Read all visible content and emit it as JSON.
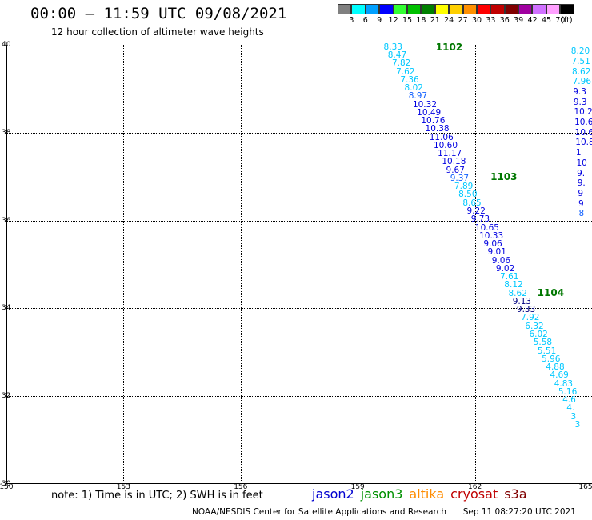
{
  "header": {
    "title": "00:00 – 11:59 UTC 09/08/2021",
    "subtitle": "12 hour collection of altimeter wave heights"
  },
  "legend": {
    "unit_label": "(ft)",
    "bins": [
      {
        "label": "3",
        "color": "#808080"
      },
      {
        "label": "6",
        "color": "#00ffff"
      },
      {
        "label": "9",
        "color": "#00a0ff"
      },
      {
        "label": "12",
        "color": "#0000ff"
      },
      {
        "label": "15",
        "color": "#33ff33"
      },
      {
        "label": "18",
        "color": "#00c000"
      },
      {
        "label": "21",
        "color": "#008000"
      },
      {
        "label": "24",
        "color": "#ffff00"
      },
      {
        "label": "27",
        "color": "#ffd000"
      },
      {
        "label": "30",
        "color": "#ff9000"
      },
      {
        "label": "33",
        "color": "#ff0000"
      },
      {
        "label": "36",
        "color": "#c00000"
      },
      {
        "label": "39",
        "color": "#800000"
      },
      {
        "label": "42",
        "color": "#a000a0"
      },
      {
        "label": "45",
        "color": "#d070ff"
      },
      {
        "label": "70",
        "color": "#ffa0ff"
      },
      {
        "label": "",
        "color": "#000000"
      }
    ]
  },
  "map": {
    "lon_range": [
      150,
      165
    ],
    "lat_range": [
      30,
      40
    ],
    "lon_ticks": [
      "150",
      "153",
      "156",
      "159",
      "162",
      "165"
    ],
    "lat_ticks": [
      "40",
      "38",
      "36",
      "34",
      "32",
      "30"
    ],
    "track_labels": [
      {
        "text": "1102",
        "lon": 161.0,
        "lat": 39.95
      },
      {
        "text": "1103",
        "lon": 162.4,
        "lat": 37.0
      },
      {
        "text": "1104",
        "lon": 163.6,
        "lat": 34.35
      }
    ],
    "tracks": [
      {
        "name": "track-1102-1104",
        "lon_start": 159.95,
        "lat_start": 39.95,
        "lon_end": 164.85,
        "lat_end": 31.35,
        "points": [
          {
            "v": "8.33",
            "c": "#00c8ff"
          },
          {
            "v": "8.47",
            "c": "#00c8ff"
          },
          {
            "v": "7.82",
            "c": "#00c8ff"
          },
          {
            "v": "7.62",
            "c": "#00c8ff"
          },
          {
            "v": "7.36",
            "c": "#00c8ff"
          },
          {
            "v": "8.02",
            "c": "#00c8ff"
          },
          {
            "v": "8.97",
            "c": "#1060ff"
          },
          {
            "v": "10.32",
            "c": "#0000e0"
          },
          {
            "v": "10.49",
            "c": "#0000e0"
          },
          {
            "v": "10.76",
            "c": "#0000e0"
          },
          {
            "v": "10.38",
            "c": "#0000e0"
          },
          {
            "v": "11.06",
            "c": "#0000e0"
          },
          {
            "v": "10.60",
            "c": "#0000e0"
          },
          {
            "v": "11.17",
            "c": "#0000e0"
          },
          {
            "v": "10.18",
            "c": "#0000e0"
          },
          {
            "v": "9.67",
            "c": "#0000e0"
          },
          {
            "v": "9.37",
            "c": "#1060ff"
          },
          {
            "v": "7.89",
            "c": "#00c8ff"
          },
          {
            "v": "8.50",
            "c": "#00c8ff"
          },
          {
            "v": "8.65",
            "c": "#00c8ff"
          },
          {
            "v": "9.22",
            "c": "#0000e0"
          },
          {
            "v": "9.73",
            "c": "#0000e0"
          },
          {
            "v": "10.65",
            "c": "#0000e0"
          },
          {
            "v": "10.33",
            "c": "#0000e0"
          },
          {
            "v": "9.06",
            "c": "#0000e0"
          },
          {
            "v": "9.01",
            "c": "#0000e0"
          },
          {
            "v": "9.06",
            "c": "#0000e0"
          },
          {
            "v": "9.02",
            "c": "#0000e0"
          },
          {
            "v": "7.61",
            "c": "#00c8ff"
          },
          {
            "v": "8.12",
            "c": "#00c8ff"
          },
          {
            "v": "8.62",
            "c": "#00c8ff"
          },
          {
            "v": "9.13",
            "c": "#000080"
          },
          {
            "v": "9.33",
            "c": "#000080"
          },
          {
            "v": "7.92",
            "c": "#00c8ff"
          },
          {
            "v": "6.32",
            "c": "#00c8ff"
          },
          {
            "v": "6.02",
            "c": "#00c8ff"
          },
          {
            "v": "5.58",
            "c": "#00c8ff"
          },
          {
            "v": "5.51",
            "c": "#00c8ff"
          },
          {
            "v": "5.96",
            "c": "#00c8ff"
          },
          {
            "v": "4.88",
            "c": "#00c8ff"
          },
          {
            "v": "4.69",
            "c": "#00c8ff"
          },
          {
            "v": "4.83",
            "c": "#00c8ff"
          },
          {
            "v": "5.16",
            "c": "#00c8ff"
          },
          {
            "v": "4.6",
            "c": "#00c8ff"
          },
          {
            "v": "4.",
            "c": "#00c8ff"
          },
          {
            "v": "3",
            "c": "#00c8ff"
          },
          {
            "v": "3",
            "c": "#00c8ff"
          }
        ]
      },
      {
        "name": "track-right-edge",
        "lon_start": 164.75,
        "lat_start": 39.85,
        "lon_end": 164.95,
        "lat_end": 36.15,
        "points": [
          {
            "v": "8.20",
            "c": "#00c8ff"
          },
          {
            "v": "7.51",
            "c": "#00c8ff"
          },
          {
            "v": "8.62",
            "c": "#00c8ff"
          },
          {
            "v": "7.96",
            "c": "#00c8ff"
          },
          {
            "v": "9.3",
            "c": "#0000e0"
          },
          {
            "v": "9.3",
            "c": "#0000e0"
          },
          {
            "v": "10.2",
            "c": "#0000e0"
          },
          {
            "v": "10.6",
            "c": "#0000e0"
          },
          {
            "v": "10.6",
            "c": "#0000e0"
          },
          {
            "v": "10.8",
            "c": "#0000e0"
          },
          {
            "v": "1",
            "c": "#0000e0"
          },
          {
            "v": "10",
            "c": "#0000e0"
          },
          {
            "v": "9.",
            "c": "#0000e0"
          },
          {
            "v": "9.",
            "c": "#0000e0"
          },
          {
            "v": "9",
            "c": "#0000e0"
          },
          {
            "v": "9",
            "c": "#0000e0"
          },
          {
            "v": "8",
            "c": "#1060ff"
          }
        ]
      }
    ]
  },
  "note": "note: 1) Time is in UTC; 2) SWH is in feet",
  "satellites": [
    {
      "name": "jason2",
      "color": "#0000d0"
    },
    {
      "name": "jason3",
      "color": "#009000"
    },
    {
      "name": "altika",
      "color": "#ff8c00"
    },
    {
      "name": "cryosat",
      "color": "#c00000"
    },
    {
      "name": "s3a",
      "color": "#800000"
    }
  ],
  "footer": {
    "credit": "NOAA/NESDIS Center for Satellite Applications and Research",
    "timestamp": "Sep 11 08:27:20 UTC 2021"
  }
}
